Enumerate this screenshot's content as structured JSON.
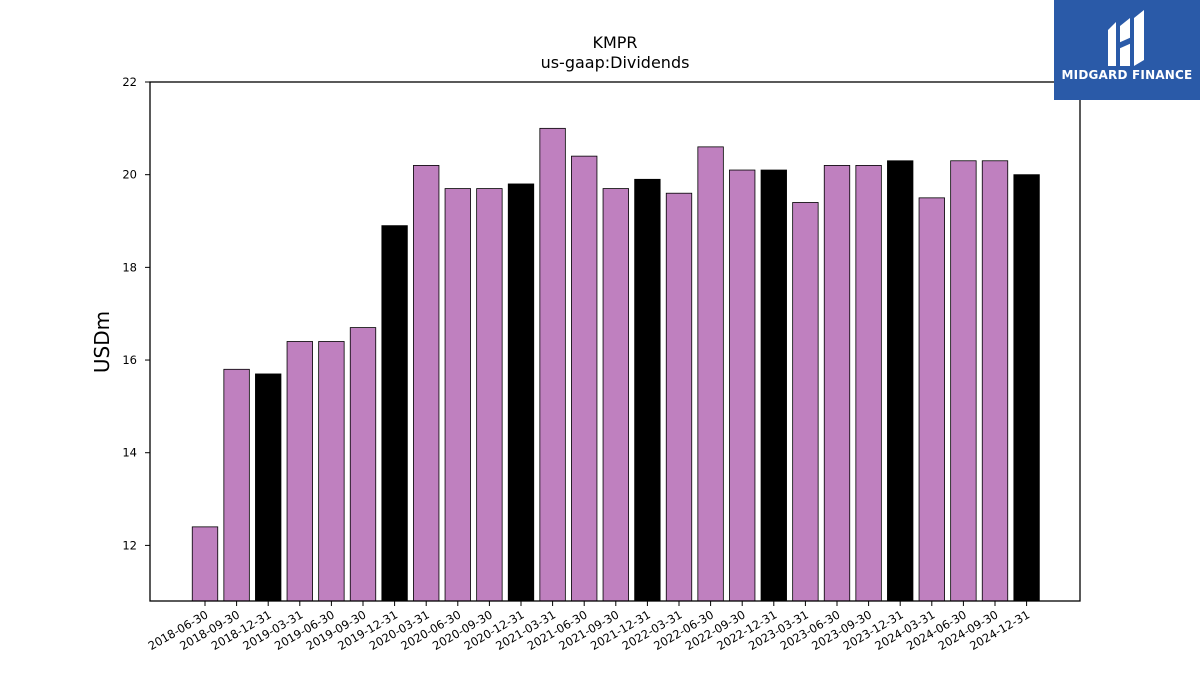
{
  "chart_data": {
    "type": "bar",
    "title": "KMPR",
    "subtitle": "us-gaap:Dividends",
    "xlabel": "",
    "ylabel": "USDm",
    "ylim": [
      10.8,
      22
    ],
    "yticks": [
      12,
      14,
      16,
      18,
      20,
      22
    ],
    "grid": false,
    "categories": [
      "2018-06-30",
      "2018-09-30",
      "2018-12-31",
      "2019-03-31",
      "2019-06-30",
      "2019-09-30",
      "2019-12-31",
      "2020-03-31",
      "2020-06-30",
      "2020-09-30",
      "2020-12-31",
      "2021-03-31",
      "2021-06-30",
      "2021-09-30",
      "2021-12-31",
      "2022-03-31",
      "2022-06-30",
      "2022-09-30",
      "2022-12-31",
      "2023-03-31",
      "2023-06-30",
      "2023-09-30",
      "2023-12-31",
      "2024-03-31",
      "2024-06-30",
      "2024-09-30",
      "2024-12-31"
    ],
    "values": [
      12.4,
      15.8,
      15.7,
      16.4,
      16.4,
      16.7,
      18.9,
      20.2,
      19.7,
      19.7,
      19.8,
      21.0,
      20.4,
      19.7,
      19.9,
      19.6,
      20.6,
      20.1,
      20.1,
      19.4,
      20.2,
      20.2,
      20.3,
      19.5,
      20.3,
      20.3,
      20.0
    ],
    "colors": {
      "quarter": "#bf80bf",
      "year_end": "#000000"
    }
  },
  "logo": {
    "text": "MIDGARD FINANCE",
    "icon": "midgard-logo-icon"
  }
}
